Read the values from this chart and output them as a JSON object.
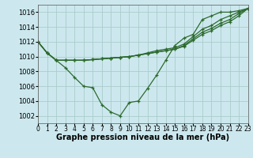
{
  "xlabel": "Graphe pression niveau de la mer (hPa)",
  "bg_color": "#cce8ee",
  "grid_color": "#aacccc",
  "line_color": "#2d6a2d",
  "marker": "+",
  "x": [
    0,
    1,
    2,
    3,
    4,
    5,
    6,
    7,
    8,
    9,
    10,
    11,
    12,
    13,
    14,
    15,
    16,
    17,
    18,
    19,
    20,
    21,
    22,
    23
  ],
  "series": [
    [
      1012,
      1010.5,
      1009.5,
      1008.5,
      1007.2,
      1006.0,
      1005.8,
      1003.5,
      1002.5,
      1002.0,
      1003.8,
      1004.0,
      1005.7,
      1007.5,
      1009.5,
      1011.5,
      1012.5,
      1013.0,
      1015.0,
      1015.5,
      1016.0,
      1016.0,
      1016.2,
      1016.5
    ],
    [
      1012,
      1010.5,
      1009.5,
      1009.5,
      1009.5,
      1009.5,
      1009.6,
      1009.7,
      1009.8,
      1009.9,
      1010.0,
      1010.2,
      1010.4,
      1010.6,
      1010.8,
      1011.0,
      1011.4,
      1012.2,
      1013.0,
      1013.5,
      1014.2,
      1014.7,
      1015.5,
      1016.5
    ],
    [
      1012,
      1010.5,
      1009.5,
      1009.5,
      1009.5,
      1009.5,
      1009.6,
      1009.7,
      1009.8,
      1009.9,
      1010.0,
      1010.2,
      1010.4,
      1010.6,
      1010.8,
      1011.0,
      1011.5,
      1012.4,
      1013.3,
      1013.8,
      1014.5,
      1015.0,
      1015.8,
      1016.5
    ],
    [
      1012,
      1010.5,
      1009.5,
      1009.5,
      1009.5,
      1009.5,
      1009.6,
      1009.7,
      1009.8,
      1009.9,
      1010.0,
      1010.2,
      1010.5,
      1010.8,
      1011.0,
      1011.2,
      1011.7,
      1012.7,
      1013.7,
      1014.2,
      1015.0,
      1015.5,
      1016.0,
      1016.5
    ]
  ],
  "ylim": [
    1001.0,
    1017.0
  ],
  "yticks": [
    1002,
    1004,
    1006,
    1008,
    1010,
    1012,
    1014,
    1016
  ],
  "xlim": [
    0,
    23
  ],
  "xlabel_fontsize": 7,
  "xlabel_fontweight": "bold",
  "tick_fontsize": 6
}
